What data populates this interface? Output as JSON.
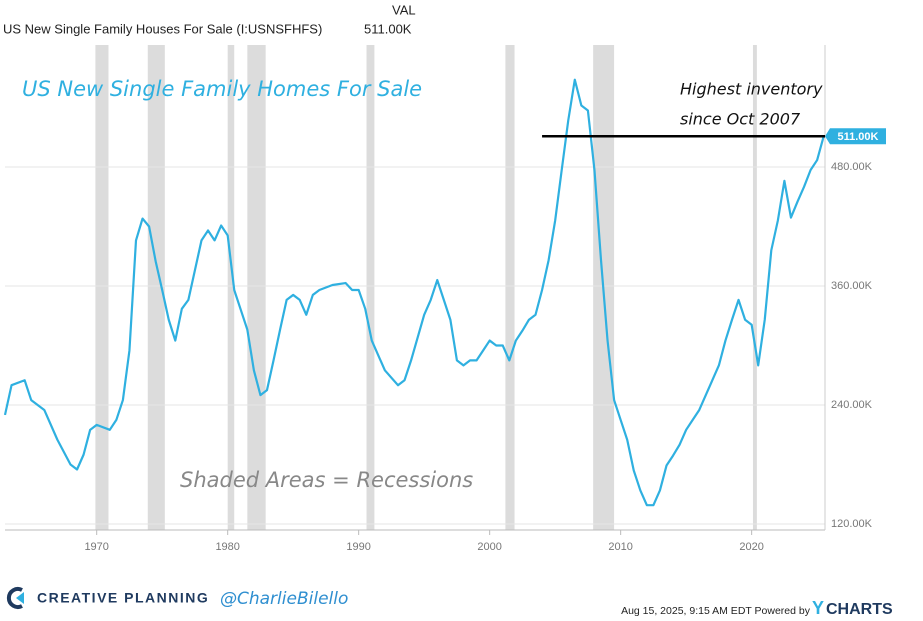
{
  "chart_data": {
    "type": "line",
    "header_title": "US New Single Family Houses For Sale (I:USNSFHFS)",
    "header_value_heading": "VAL",
    "header_value": "511.00K",
    "title": "US New Single Family Homes For Sale",
    "annotation_lines": [
      "Highest inventory",
      "since Oct 2007"
    ],
    "annotation_level": {
      "y": 511,
      "x_start": 2004
    },
    "recession_note": "Shaded Areas = Recessions",
    "recessions": [
      [
        1969.9,
        1970.9
      ],
      [
        1973.9,
        1975.2
      ],
      [
        1980.0,
        1980.5
      ],
      [
        1981.5,
        1982.9
      ],
      [
        1990.6,
        1991.2
      ],
      [
        2001.2,
        2001.9
      ],
      [
        2007.9,
        2009.5
      ],
      [
        2020.1,
        2020.4
      ]
    ],
    "color": "#2fb0e0",
    "recession_color": "#dcdcdc",
    "grid": true,
    "x": [
      1963,
      1963.5,
      1964.5,
      1965,
      1966,
      1967,
      1968,
      1968.5,
      1969,
      1969.5,
      1970,
      1971,
      1971.5,
      1972,
      1972.5,
      1973,
      1973.5,
      1974,
      1974.5,
      1975,
      1975.5,
      1976,
      1976.5,
      1977,
      1977.5,
      1978,
      1978.5,
      1979,
      1979.5,
      1980,
      1980.5,
      1981,
      1981.5,
      1982,
      1982.5,
      1983,
      1983.5,
      1984,
      1984.5,
      1985,
      1985.5,
      1986,
      1986.5,
      1987,
      1988,
      1989,
      1989.5,
      1990,
      1990.5,
      1991,
      1992,
      1993,
      1993.5,
      1994,
      1995,
      1995.5,
      1996,
      1996.5,
      1997,
      1997.5,
      1998,
      1998.5,
      1999,
      1999.5,
      2000,
      2000.5,
      2001,
      2001.5,
      2002,
      2002.5,
      2003,
      2003.5,
      2004,
      2004.5,
      2005,
      2005.5,
      2006,
      2006.5,
      2007,
      2007.5,
      2008,
      2008.5,
      2009,
      2009.5,
      2010,
      2010.5,
      2011,
      2011.5,
      2012,
      2012.5,
      2013,
      2013.5,
      2014,
      2014.5,
      2015,
      2015.5,
      2016,
      2016.5,
      2017,
      2017.5,
      2018,
      2018.5,
      2019,
      2019.5,
      2020,
      2020.5,
      2021,
      2021.5,
      2022,
      2022.5,
      2023,
      2023.5,
      2024,
      2024.5,
      2025,
      2025.5
    ],
    "values": [
      230,
      260,
      265,
      245,
      235,
      205,
      180,
      175,
      190,
      215,
      220,
      215,
      225,
      245,
      295,
      406,
      428,
      420,
      385,
      356,
      326,
      305,
      337,
      346,
      376,
      406,
      416,
      406,
      421,
      411,
      356,
      336,
      316,
      275,
      250,
      255,
      285,
      316,
      346,
      351,
      346,
      331,
      351,
      356,
      361,
      363,
      356,
      356,
      337,
      305,
      275,
      260,
      265,
      285,
      331,
      346,
      366,
      346,
      326,
      285,
      280,
      285,
      285,
      295,
      305,
      300,
      300,
      285,
      305,
      315,
      326,
      331,
      356,
      386,
      426,
      477,
      527,
      568,
      542,
      537,
      477,
      386,
      305,
      245,
      225,
      205,
      174,
      154,
      139,
      139,
      154,
      179,
      189,
      200,
      215,
      225,
      235,
      250,
      265,
      280,
      305,
      326,
      346,
      326,
      321,
      280,
      326,
      396,
      426,
      466,
      429,
      445,
      460,
      477,
      487,
      511
    ],
    "xlim": [
      1963,
      2025.6
    ],
    "ylim": [
      114,
      603
    ],
    "xticks": [
      1970,
      1980,
      1990,
      2000,
      2010,
      2020
    ],
    "yticks": [
      {
        "value": 120,
        "label": "120.00K"
      },
      {
        "value": 240,
        "label": "240.00K"
      },
      {
        "value": 360,
        "label": "360.00K"
      },
      {
        "value": 480,
        "label": "480.00K"
      }
    ],
    "footer_brand": "CREATIVE PLANNING",
    "footer_handle": "@CharlieBilello",
    "footer_date": "Aug 15, 2025, 9:15 AM EDT Powered by",
    "footer_logo_y": "Y",
    "footer_logo_rest": "CHARTS"
  }
}
